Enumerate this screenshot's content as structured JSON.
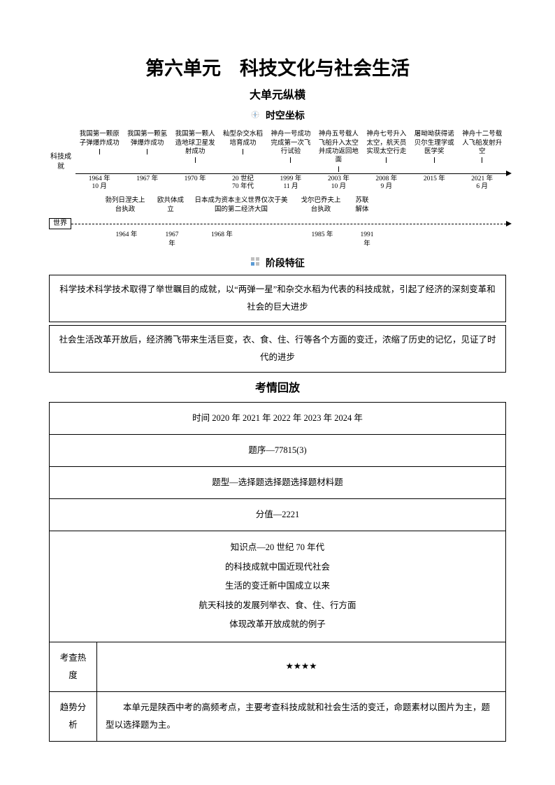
{
  "title": {
    "main": "第六单元　科技文化与社会生活",
    "sub": "大单元纵横"
  },
  "sections": {
    "timeline": "时空坐标",
    "stage": "阶段特征",
    "exam": "考情回放"
  },
  "timeline": {
    "label_china": "科技成就",
    "label_world": "世界",
    "china_events": [
      {
        "text": "我国第一颗原子弹爆炸成功",
        "date": "1964 年\n10 月"
      },
      {
        "text": "我国第一颗氢弹爆炸成功",
        "date": "1967 年"
      },
      {
        "text": "我国第一颗人造地球卫星发射成功",
        "date": "1970 年"
      },
      {
        "text": "籼型杂交水稻培育成功",
        "date": "20 世纪\n70 年代"
      },
      {
        "text": "神舟一号成功完成第一次飞行试验",
        "date": "1999 年\n11 月"
      },
      {
        "text": "神舟五号载人飞船升入太空并成功返回地面",
        "date": "2003 年\n10 月"
      },
      {
        "text": "神舟七号升入太空，航天员实现太空行走",
        "date": "2008 年\n9 月"
      },
      {
        "text": "屠呦呦获得诺贝尔生理学或医学奖",
        "date": "2015 年"
      },
      {
        "text": "神舟十二号载人飞船发射升空",
        "date": "2021 年\n6 月"
      }
    ],
    "world_events": [
      {
        "text": "勃列日涅夫上台执政",
        "date": "1964 年"
      },
      {
        "text": "欧共体成立",
        "date": "1967 年"
      },
      {
        "text": "日本成为资本主义世界仅次于美国的第二经济大国",
        "date": "1968 年"
      },
      {
        "text": "戈尔巴乔夫上台执政",
        "date": "1985 年"
      },
      {
        "text": "苏联解体",
        "date": "1991 年"
      }
    ]
  },
  "stage": {
    "row1": "科学技术科学技术取得了举世瞩目的成就，以“两弹一星”和杂交水稻为代表的科技成就，引起了经济的深刻变革和社会的巨大进步",
    "row2": "社会生活改革开放后，经济腾飞带来生活巨变，衣、食、住、行等各个方面的变迁，浓缩了历史的记忆，见证了时代的进步"
  },
  "exam": {
    "row_time": "时间 2020 年 2021 年 2022 年 2023 年 2024 年",
    "row_seq": "题序—77815(3)",
    "row_type": "题型—选择题选择题选择题材料题",
    "row_score": "分值—2221",
    "know_1": "知识点—20 世纪 70 年代",
    "know_2": "的科技成就中国近现代社会",
    "know_3": "生活的变迁新中国成立以来",
    "know_4": "航天科技的发展列举衣、食、住、行方面",
    "know_5": "体现改革开放成就的例子",
    "heat_label": "考查热度",
    "heat_value": "★★★★",
    "trend_label": "趋势分析",
    "trend_text": "本单元是陕西中考的高频考点，主要考查科技成就和社会生活的变迁，命题素材以图片为主，题型以选择题为主。"
  },
  "colors": {
    "text": "#000000",
    "background": "#ffffff",
    "icon_gray": "#bfbfbf",
    "icon_blue": "#5b9bd5"
  }
}
